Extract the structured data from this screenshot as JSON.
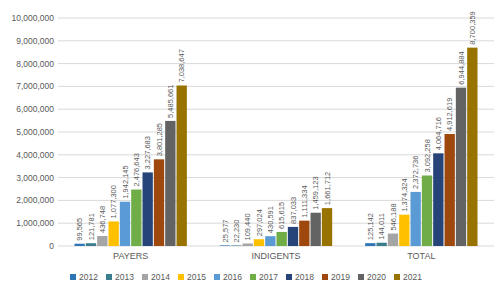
{
  "chart_data": {
    "type": "bar",
    "categories": [
      "PAYERS",
      "INDIGENTS",
      "TOTAL"
    ],
    "ylim": [
      0,
      10000000
    ],
    "yticks": [
      {
        "value": 0,
        "label": "0"
      },
      {
        "value": 1000000,
        "label": "1,000,000"
      },
      {
        "value": 2000000,
        "label": "2,000,000"
      },
      {
        "value": 3000000,
        "label": "3,000,000"
      },
      {
        "value": 4000000,
        "label": "4,000,000"
      },
      {
        "value": 5000000,
        "label": "5,000,000"
      },
      {
        "value": 6000000,
        "label": "6,000,000"
      },
      {
        "value": 7000000,
        "label": "7,000,000"
      },
      {
        "value": 8000000,
        "label": "8,000,000"
      },
      {
        "value": 9000000,
        "label": "9,000,000"
      },
      {
        "value": 10000000,
        "label": "10,000,000"
      }
    ],
    "grid": true,
    "legend": "bottom",
    "data_labels": true,
    "series": [
      {
        "name": "2012",
        "color": "#2e75b6",
        "values": [
          99565,
          25577,
          125142
        ],
        "value_labels": [
          "99,565",
          "25,577",
          "125,142"
        ]
      },
      {
        "name": "2013",
        "color": "#3a7d8c",
        "values": [
          121781,
          22230,
          144011
        ],
        "value_labels": [
          "121,781",
          "22,230",
          "144,011"
        ]
      },
      {
        "name": "2014",
        "color": "#a5a5a5",
        "values": [
          436748,
          109440,
          546188
        ],
        "value_labels": [
          "436,748",
          "109,440",
          "546,188"
        ]
      },
      {
        "name": "2015",
        "color": "#ffc000",
        "values": [
          1077300,
          297024,
          1374324
        ],
        "value_labels": [
          "1,077,300",
          "297,024",
          "1,374,324"
        ]
      },
      {
        "name": "2016",
        "color": "#5b9bd5",
        "values": [
          1942145,
          430591,
          2372736
        ],
        "value_labels": [
          "1,942,145",
          "430,591",
          "2,372,736"
        ]
      },
      {
        "name": "2017",
        "color": "#70ad47",
        "values": [
          2476643,
          615615,
          3092258
        ],
        "value_labels": [
          "2,476,643",
          "615,615",
          "3,092,258"
        ]
      },
      {
        "name": "2018",
        "color": "#264478",
        "values": [
          3227683,
          837033,
          4064716
        ],
        "value_labels": [
          "3,227,683",
          "837,033",
          "4,064,716"
        ]
      },
      {
        "name": "2019",
        "color": "#9e480e",
        "values": [
          3801285,
          1111334,
          4912619
        ],
        "value_labels": [
          "3,801,285",
          "1,111,334",
          "4,912,619"
        ]
      },
      {
        "name": "2020",
        "color": "#636363",
        "values": [
          5485661,
          1459123,
          6944884
        ],
        "value_labels": [
          "5,485,661",
          "1,459,123",
          "6,944,884"
        ]
      },
      {
        "name": "2021",
        "color": "#997300",
        "values": [
          7038647,
          1661712,
          8700359
        ],
        "value_labels": [
          "7,038,647",
          "1,661,712",
          "8,700,359"
        ]
      }
    ]
  }
}
